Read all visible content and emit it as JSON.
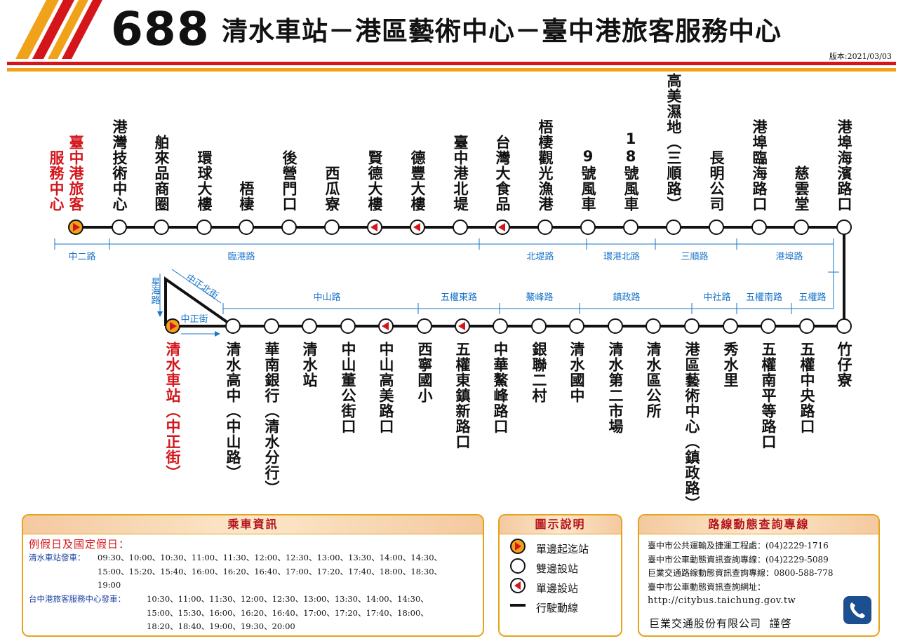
{
  "header": {
    "route_number": "688",
    "route_name": "清水車站－港區藝術中心－臺中港旅客服務中心",
    "version": "版本:2021/03/03"
  },
  "colors": {
    "red": "#d4161b",
    "orange": "#f0a21b",
    "blue": "#1a74c8",
    "line": "#111111"
  },
  "top_stops": [
    {
      "name": "臺中港旅客服務中心",
      "col2": "服務中心",
      "col1": "臺中港旅客",
      "type": "terminal"
    },
    {
      "name": "港灣技術中心",
      "type": "both"
    },
    {
      "name": "舶來品商圈",
      "type": "both"
    },
    {
      "name": "環球大樓",
      "type": "both"
    },
    {
      "name": "梧棲",
      "type": "both"
    },
    {
      "name": "後營門口",
      "type": "both"
    },
    {
      "name": "西瓜寮",
      "type": "both"
    },
    {
      "name": "賢德大樓",
      "type": "single"
    },
    {
      "name": "德豐大樓",
      "type": "single"
    },
    {
      "name": "臺中港北堤",
      "type": "both"
    },
    {
      "name": "台灣大食品",
      "type": "single"
    },
    {
      "name": "梧棲觀光漁港",
      "type": "both"
    },
    {
      "name": "9號風車",
      "type": "both"
    },
    {
      "name": "18號風車",
      "type": "both"
    },
    {
      "name": "高美濕地︵三順路︶",
      "type": "both"
    },
    {
      "name": "長明公司",
      "type": "both"
    },
    {
      "name": "港埠臨海路口",
      "type": "both"
    },
    {
      "name": "慈雲堂",
      "type": "both"
    },
    {
      "name": "港埠海濱路口",
      "type": "both"
    }
  ],
  "bottom_stops": [
    {
      "name": "清水車站︵中正街︶",
      "type": "terminal"
    },
    {
      "name": "清水高中︵中山路︶",
      "type": "both"
    },
    {
      "name": "華南銀行︵清水分行︶",
      "type": "both"
    },
    {
      "name": "清水站",
      "type": "both"
    },
    {
      "name": "中山董公街口",
      "type": "both"
    },
    {
      "name": "中山高美路口",
      "type": "single"
    },
    {
      "name": "西寧國小",
      "type": "both"
    },
    {
      "name": "五權東鎮新路口",
      "type": "single"
    },
    {
      "name": "中華鰲峰路口",
      "type": "both"
    },
    {
      "name": "銀聯二村",
      "type": "both"
    },
    {
      "name": "清水國中",
      "type": "both"
    },
    {
      "name": "清水第二市場",
      "type": "both"
    },
    {
      "name": "清水區公所",
      "type": "both"
    },
    {
      "name": "港區藝術中心︵鎮政路︶",
      "type": "both"
    },
    {
      "name": "秀水里",
      "type": "both"
    },
    {
      "name": "五權南平等路口",
      "type": "both"
    },
    {
      "name": "五權中央路口",
      "type": "both"
    },
    {
      "name": "竹仔寮",
      "type": "both"
    }
  ],
  "top_roads": [
    "中二路",
    "臨港路",
    "北堤路",
    "環港北路",
    "三順路",
    "港埠路"
  ],
  "bottom_roads": [
    "中山路",
    "五權東路",
    "鰲峰路",
    "鎮政路",
    "中社路",
    "五權南路",
    "五權路"
  ],
  "loop_roads": {
    "north": "中正北街",
    "west": "星海路",
    "south": "中正街"
  },
  "info_panel": {
    "title": "乘車資訊",
    "subtitle": "例假日及國定假日：",
    "rows": [
      {
        "label": "清水車站發車：",
        "lines": [
          "09:30、10:00、10:30、11:00、11:30、12:00、12:30、13:00、13:30、14:00、14:30、",
          "15:00、15:20、15:40、16:00、16:20、16:40、17:00、17:20、17:40、18:00、18:30、",
          "19:00"
        ]
      },
      {
        "label": "台中港旅客服務中心發車：",
        "lines": [
          "10:30、11:00、11:30、12:00、12:30、13:00、13:30、14:00、14:30、",
          "15:00、15:30、16:00、16:20、16:40、17:00、17:20、17:40、18:00、",
          "18:20、18:40、19:00、19:30、20:00"
        ]
      }
    ]
  },
  "legend_panel": {
    "title": "圖示說明",
    "items": [
      "單邊起迄站",
      "雙邊設站",
      "單邊設站",
      "行駛動線"
    ]
  },
  "contact_panel": {
    "title": "路線動態查詢專線",
    "lines": [
      "臺中市公共運輸及捷運工程處：(04)2229-1716",
      "臺中市公車動態資訊查詢專線：(04)2229-5089",
      "巨業交通路線動態資訊查詢專線：0800-588-778",
      "臺中市公車動態資訊查詢網址：",
      "http://citybus.taichung.gov.tw"
    ],
    "signature": "巨業交通股份有限公司  謹啓",
    "icon": "phone-icon"
  }
}
